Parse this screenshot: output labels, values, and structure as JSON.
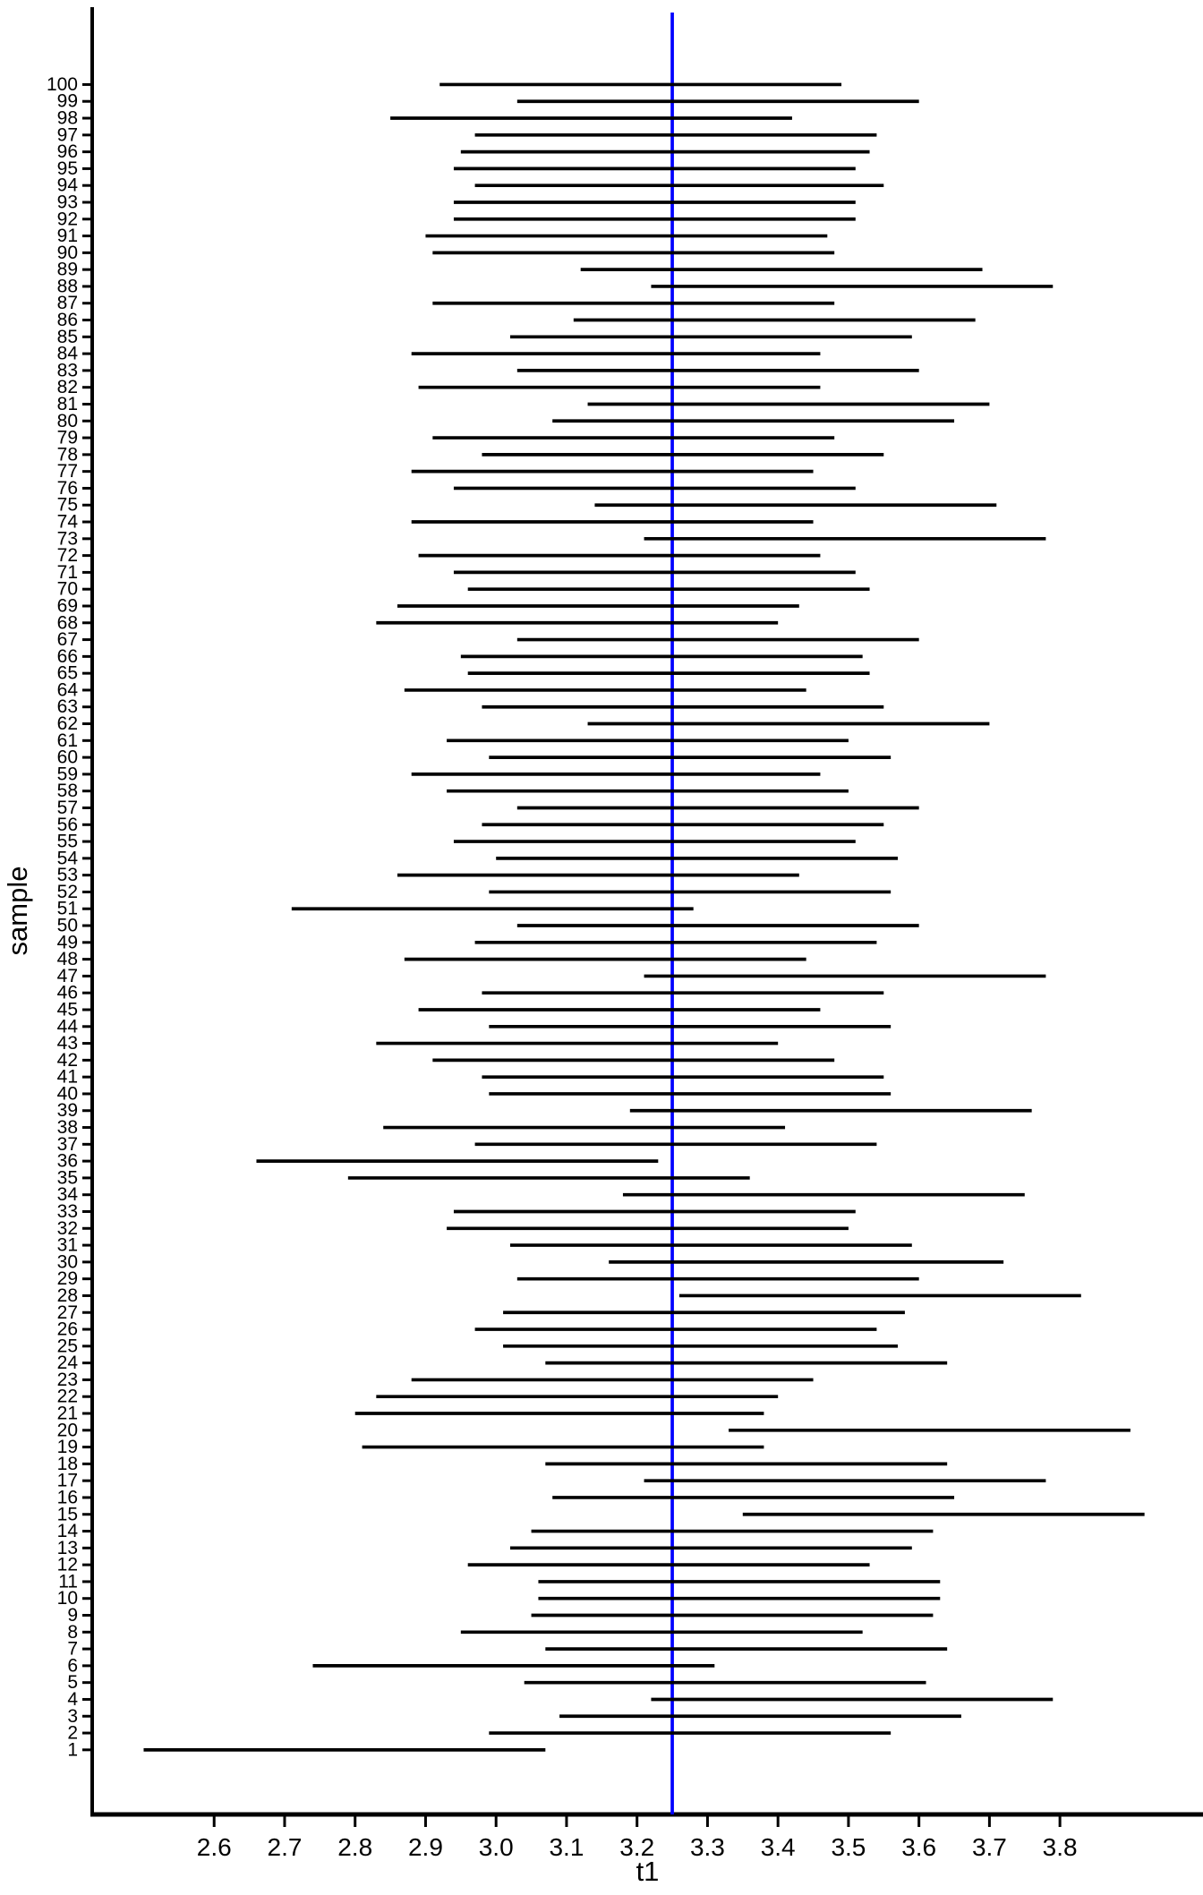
{
  "chart_data": {
    "type": "interval",
    "title": "",
    "xlabel": "t1",
    "ylabel": "sample",
    "grid": false,
    "legend": "none",
    "background": "#ffffff",
    "interval_color": "#000000",
    "axis_color": "#000000",
    "reference_line": {
      "orientation": "vertical",
      "x": 3.25,
      "color": "#0000ff"
    },
    "x_ticks": [
      2.6,
      2.7,
      2.8,
      2.9,
      3.0,
      3.1,
      3.2,
      3.3,
      3.4,
      3.5,
      3.6,
      3.7,
      3.8
    ],
    "x_tick_labels": [
      "2.6",
      "2.7",
      "2.8",
      "2.9",
      "3.0",
      "3.1",
      "3.2",
      "3.3",
      "3.4",
      "3.5",
      "3.6",
      "3.7",
      "3.8"
    ],
    "xlim": [
      2.427,
      4.003
    ],
    "ylim": [
      -2.84,
      104.6
    ],
    "y_ticks_every_sample": true,
    "columns": [
      "sample",
      "lower",
      "upper"
    ],
    "intervals": [
      [
        1,
        2.5,
        3.07
      ],
      [
        2,
        2.99,
        3.56
      ],
      [
        3,
        3.09,
        3.66
      ],
      [
        4,
        3.22,
        3.79
      ],
      [
        5,
        3.04,
        3.61
      ],
      [
        6,
        2.74,
        3.31
      ],
      [
        7,
        3.07,
        3.64
      ],
      [
        8,
        2.95,
        3.52
      ],
      [
        9,
        3.05,
        3.62
      ],
      [
        10,
        3.06,
        3.63
      ],
      [
        11,
        3.06,
        3.63
      ],
      [
        12,
        2.96,
        3.53
      ],
      [
        13,
        3.02,
        3.59
      ],
      [
        14,
        3.05,
        3.62
      ],
      [
        15,
        3.35,
        3.92
      ],
      [
        16,
        3.08,
        3.65
      ],
      [
        17,
        3.21,
        3.78
      ],
      [
        18,
        3.07,
        3.64
      ],
      [
        19,
        2.81,
        3.38
      ],
      [
        20,
        3.33,
        3.9
      ],
      [
        21,
        2.8,
        3.38
      ],
      [
        22,
        2.83,
        3.4
      ],
      [
        23,
        2.88,
        3.45
      ],
      [
        24,
        3.07,
        3.64
      ],
      [
        25,
        3.01,
        3.57
      ],
      [
        26,
        2.97,
        3.54
      ],
      [
        27,
        3.01,
        3.58
      ],
      [
        28,
        3.26,
        3.83
      ],
      [
        29,
        3.03,
        3.6
      ],
      [
        30,
        3.16,
        3.72
      ],
      [
        31,
        3.02,
        3.59
      ],
      [
        32,
        2.93,
        3.5
      ],
      [
        33,
        2.94,
        3.51
      ],
      [
        34,
        3.18,
        3.75
      ],
      [
        35,
        2.79,
        3.36
      ],
      [
        36,
        2.66,
        3.23
      ],
      [
        37,
        2.97,
        3.54
      ],
      [
        38,
        2.84,
        3.41
      ],
      [
        39,
        3.19,
        3.76
      ],
      [
        40,
        2.99,
        3.56
      ],
      [
        41,
        2.98,
        3.55
      ],
      [
        42,
        2.91,
        3.48
      ],
      [
        43,
        2.83,
        3.4
      ],
      [
        44,
        2.99,
        3.56
      ],
      [
        45,
        2.89,
        3.46
      ],
      [
        46,
        2.98,
        3.55
      ],
      [
        47,
        3.21,
        3.78
      ],
      [
        48,
        2.87,
        3.44
      ],
      [
        49,
        2.97,
        3.54
      ],
      [
        50,
        3.03,
        3.6
      ],
      [
        51,
        2.71,
        3.28
      ],
      [
        52,
        2.99,
        3.56
      ],
      [
        53,
        2.86,
        3.43
      ],
      [
        54,
        3.0,
        3.57
      ],
      [
        55,
        2.94,
        3.51
      ],
      [
        56,
        2.98,
        3.55
      ],
      [
        57,
        3.03,
        3.6
      ],
      [
        58,
        2.93,
        3.5
      ],
      [
        59,
        2.88,
        3.46
      ],
      [
        60,
        2.99,
        3.56
      ],
      [
        61,
        2.93,
        3.5
      ],
      [
        62,
        3.13,
        3.7
      ],
      [
        63,
        2.98,
        3.55
      ],
      [
        64,
        2.87,
        3.44
      ],
      [
        65,
        2.96,
        3.53
      ],
      [
        66,
        2.95,
        3.52
      ],
      [
        67,
        3.03,
        3.6
      ],
      [
        68,
        2.83,
        3.4
      ],
      [
        69,
        2.86,
        3.43
      ],
      [
        70,
        2.96,
        3.53
      ],
      [
        71,
        2.94,
        3.51
      ],
      [
        72,
        2.89,
        3.46
      ],
      [
        73,
        3.21,
        3.78
      ],
      [
        74,
        2.88,
        3.45
      ],
      [
        75,
        3.14,
        3.71
      ],
      [
        76,
        2.94,
        3.51
      ],
      [
        77,
        2.88,
        3.45
      ],
      [
        78,
        2.98,
        3.55
      ],
      [
        79,
        2.91,
        3.48
      ],
      [
        80,
        3.08,
        3.65
      ],
      [
        81,
        3.13,
        3.7
      ],
      [
        82,
        2.89,
        3.46
      ],
      [
        83,
        3.03,
        3.6
      ],
      [
        84,
        2.88,
        3.46
      ],
      [
        85,
        3.02,
        3.59
      ],
      [
        86,
        3.11,
        3.68
      ],
      [
        87,
        2.91,
        3.48
      ],
      [
        88,
        3.22,
        3.79
      ],
      [
        89,
        3.12,
        3.69
      ],
      [
        90,
        2.91,
        3.48
      ],
      [
        91,
        2.9,
        3.47
      ],
      [
        92,
        2.94,
        3.51
      ],
      [
        93,
        2.94,
        3.51
      ],
      [
        94,
        2.97,
        3.55
      ],
      [
        95,
        2.94,
        3.51
      ],
      [
        96,
        2.95,
        3.53
      ],
      [
        97,
        2.97,
        3.54
      ],
      [
        98,
        2.85,
        3.42
      ],
      [
        99,
        3.03,
        3.6
      ],
      [
        100,
        2.92,
        3.49
      ]
    ]
  }
}
